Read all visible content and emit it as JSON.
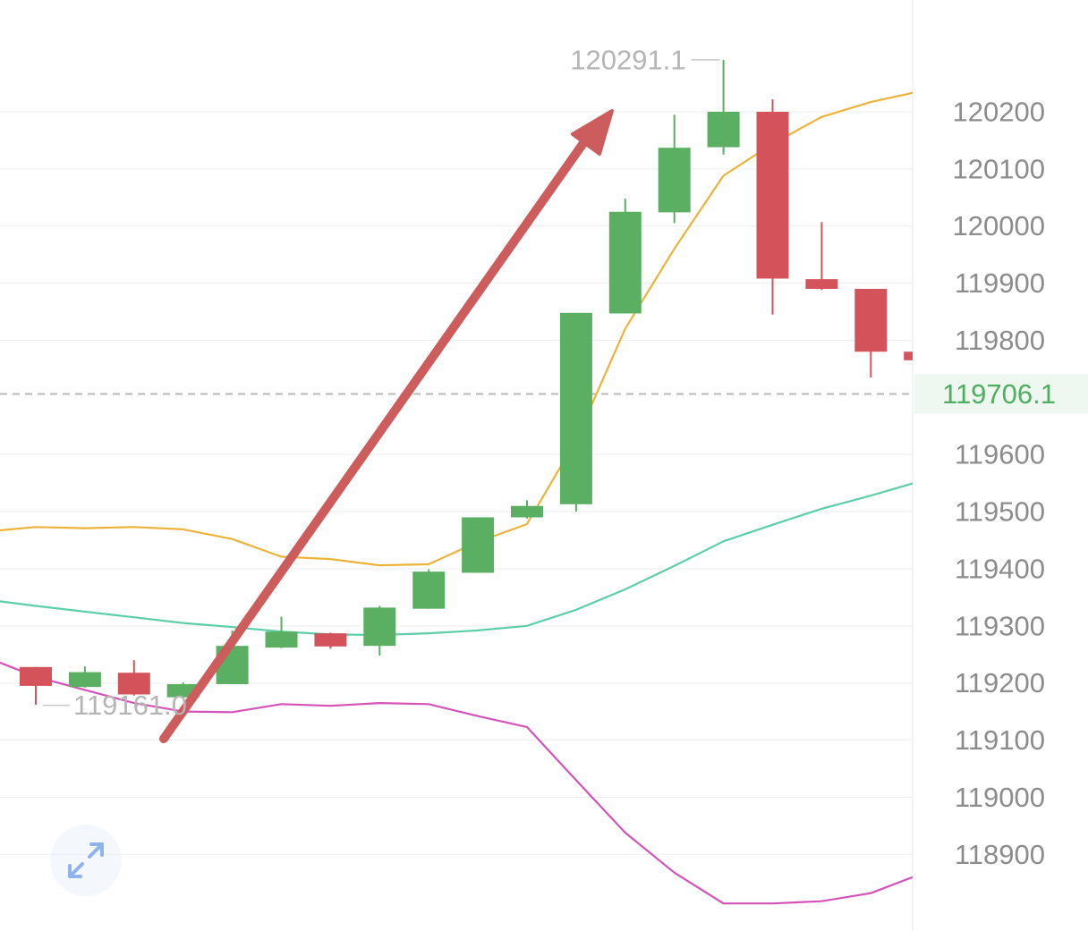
{
  "colors": {
    "up": "#5aaf62",
    "down": "#d4535b",
    "ma_orange": "#ecb33a",
    "ma_teal": "#5ccfaa",
    "ma_magenta": "#d553b8",
    "arrow": "#cd5c5c",
    "grid": "#eeeeee",
    "price_line": "#b8b8b8",
    "price_badge_bg": "#eef7f0"
  },
  "icons": {
    "expand": "expand-arrows-icon",
    "trend_arrow": "trend-arrow-up"
  },
  "chart_data": {
    "type": "candlestick",
    "y_axis": {
      "ticks": [
        120200,
        120100,
        120000,
        119900,
        119800,
        119600,
        119500,
        119400,
        119300,
        119200,
        119100,
        119000,
        118900
      ],
      "tick_labels": [
        "120200",
        "120100",
        "120000",
        "119900",
        "119800",
        "119600",
        "119500",
        "119400",
        "119300",
        "119200",
        "119100",
        "119000",
        "118900"
      ],
      "position": "right"
    },
    "grid": true,
    "current_price": {
      "value": 119706.1,
      "label": "119706.1"
    },
    "high_marker": {
      "value": 120291.1,
      "label": "120291.1"
    },
    "low_marker": {
      "value": 119161.0,
      "label": "119161.0"
    },
    "candles": [
      {
        "open": 119228,
        "close": 119195,
        "high": 119228,
        "low": 119162
      },
      {
        "open": 119193,
        "close": 119219,
        "high": 119229,
        "low": 119192
      },
      {
        "open": 119218,
        "close": 119180,
        "high": 119240,
        "low": 119178
      },
      {
        "open": 119175,
        "close": 119198,
        "high": 119201,
        "low": 119173
      },
      {
        "open": 119198,
        "close": 119265,
        "high": 119292,
        "low": 119198
      },
      {
        "open": 119262,
        "close": 119290,
        "high": 119316,
        "low": 119261
      },
      {
        "open": 119287,
        "close": 119264,
        "high": 119288,
        "low": 119260
      },
      {
        "open": 119265,
        "close": 119332,
        "high": 119335,
        "low": 119248
      },
      {
        "open": 119330,
        "close": 119395,
        "high": 119399,
        "low": 119330
      },
      {
        "open": 119393,
        "close": 119490,
        "high": 119490,
        "low": 119393
      },
      {
        "open": 119490,
        "close": 119510,
        "high": 119520,
        "low": 119488
      },
      {
        "open": 119513,
        "close": 119848,
        "high": 119848,
        "low": 119500
      },
      {
        "open": 119847,
        "close": 120025,
        "high": 120048,
        "low": 119847
      },
      {
        "open": 120024,
        "close": 120137,
        "high": 120195,
        "low": 120005
      },
      {
        "open": 120138,
        "close": 120200,
        "high": 120291.1,
        "low": 120125
      },
      {
        "open": 120200,
        "close": 119908,
        "high": 120222,
        "low": 119845
      },
      {
        "open": 119907,
        "close": 119890,
        "high": 120007,
        "low": 119888
      },
      {
        "open": 119890,
        "close": 119780,
        "high": 119890,
        "low": 119735
      },
      {
        "open": 119780,
        "close": 119765,
        "high": 119780,
        "low": 119765
      }
    ],
    "series": [
      {
        "values": [
          119465,
          119473,
          119471,
          119473,
          119469,
          119452,
          119421,
          119417,
          119406,
          119408,
          119447,
          119478,
          119625,
          119820,
          119960,
          120088,
          120144,
          120191,
          120217,
          120236
        ]
      },
      {
        "values": [
          119346,
          119335,
          119325,
          119315,
          119305,
          119298,
          119290,
          119285,
          119284,
          119287,
          119292,
          119300,
          119328,
          119364,
          119405,
          119448,
          119477,
          119505,
          119528,
          119553
        ]
      },
      {
        "values": [
          119245,
          119211,
          119188,
          119165,
          119150,
          119149,
          119163,
          119160,
          119165,
          119163,
          119142,
          119123,
          119030,
          118938,
          118868,
          118814,
          118814,
          118818,
          118832,
          118865
        ]
      }
    ]
  }
}
